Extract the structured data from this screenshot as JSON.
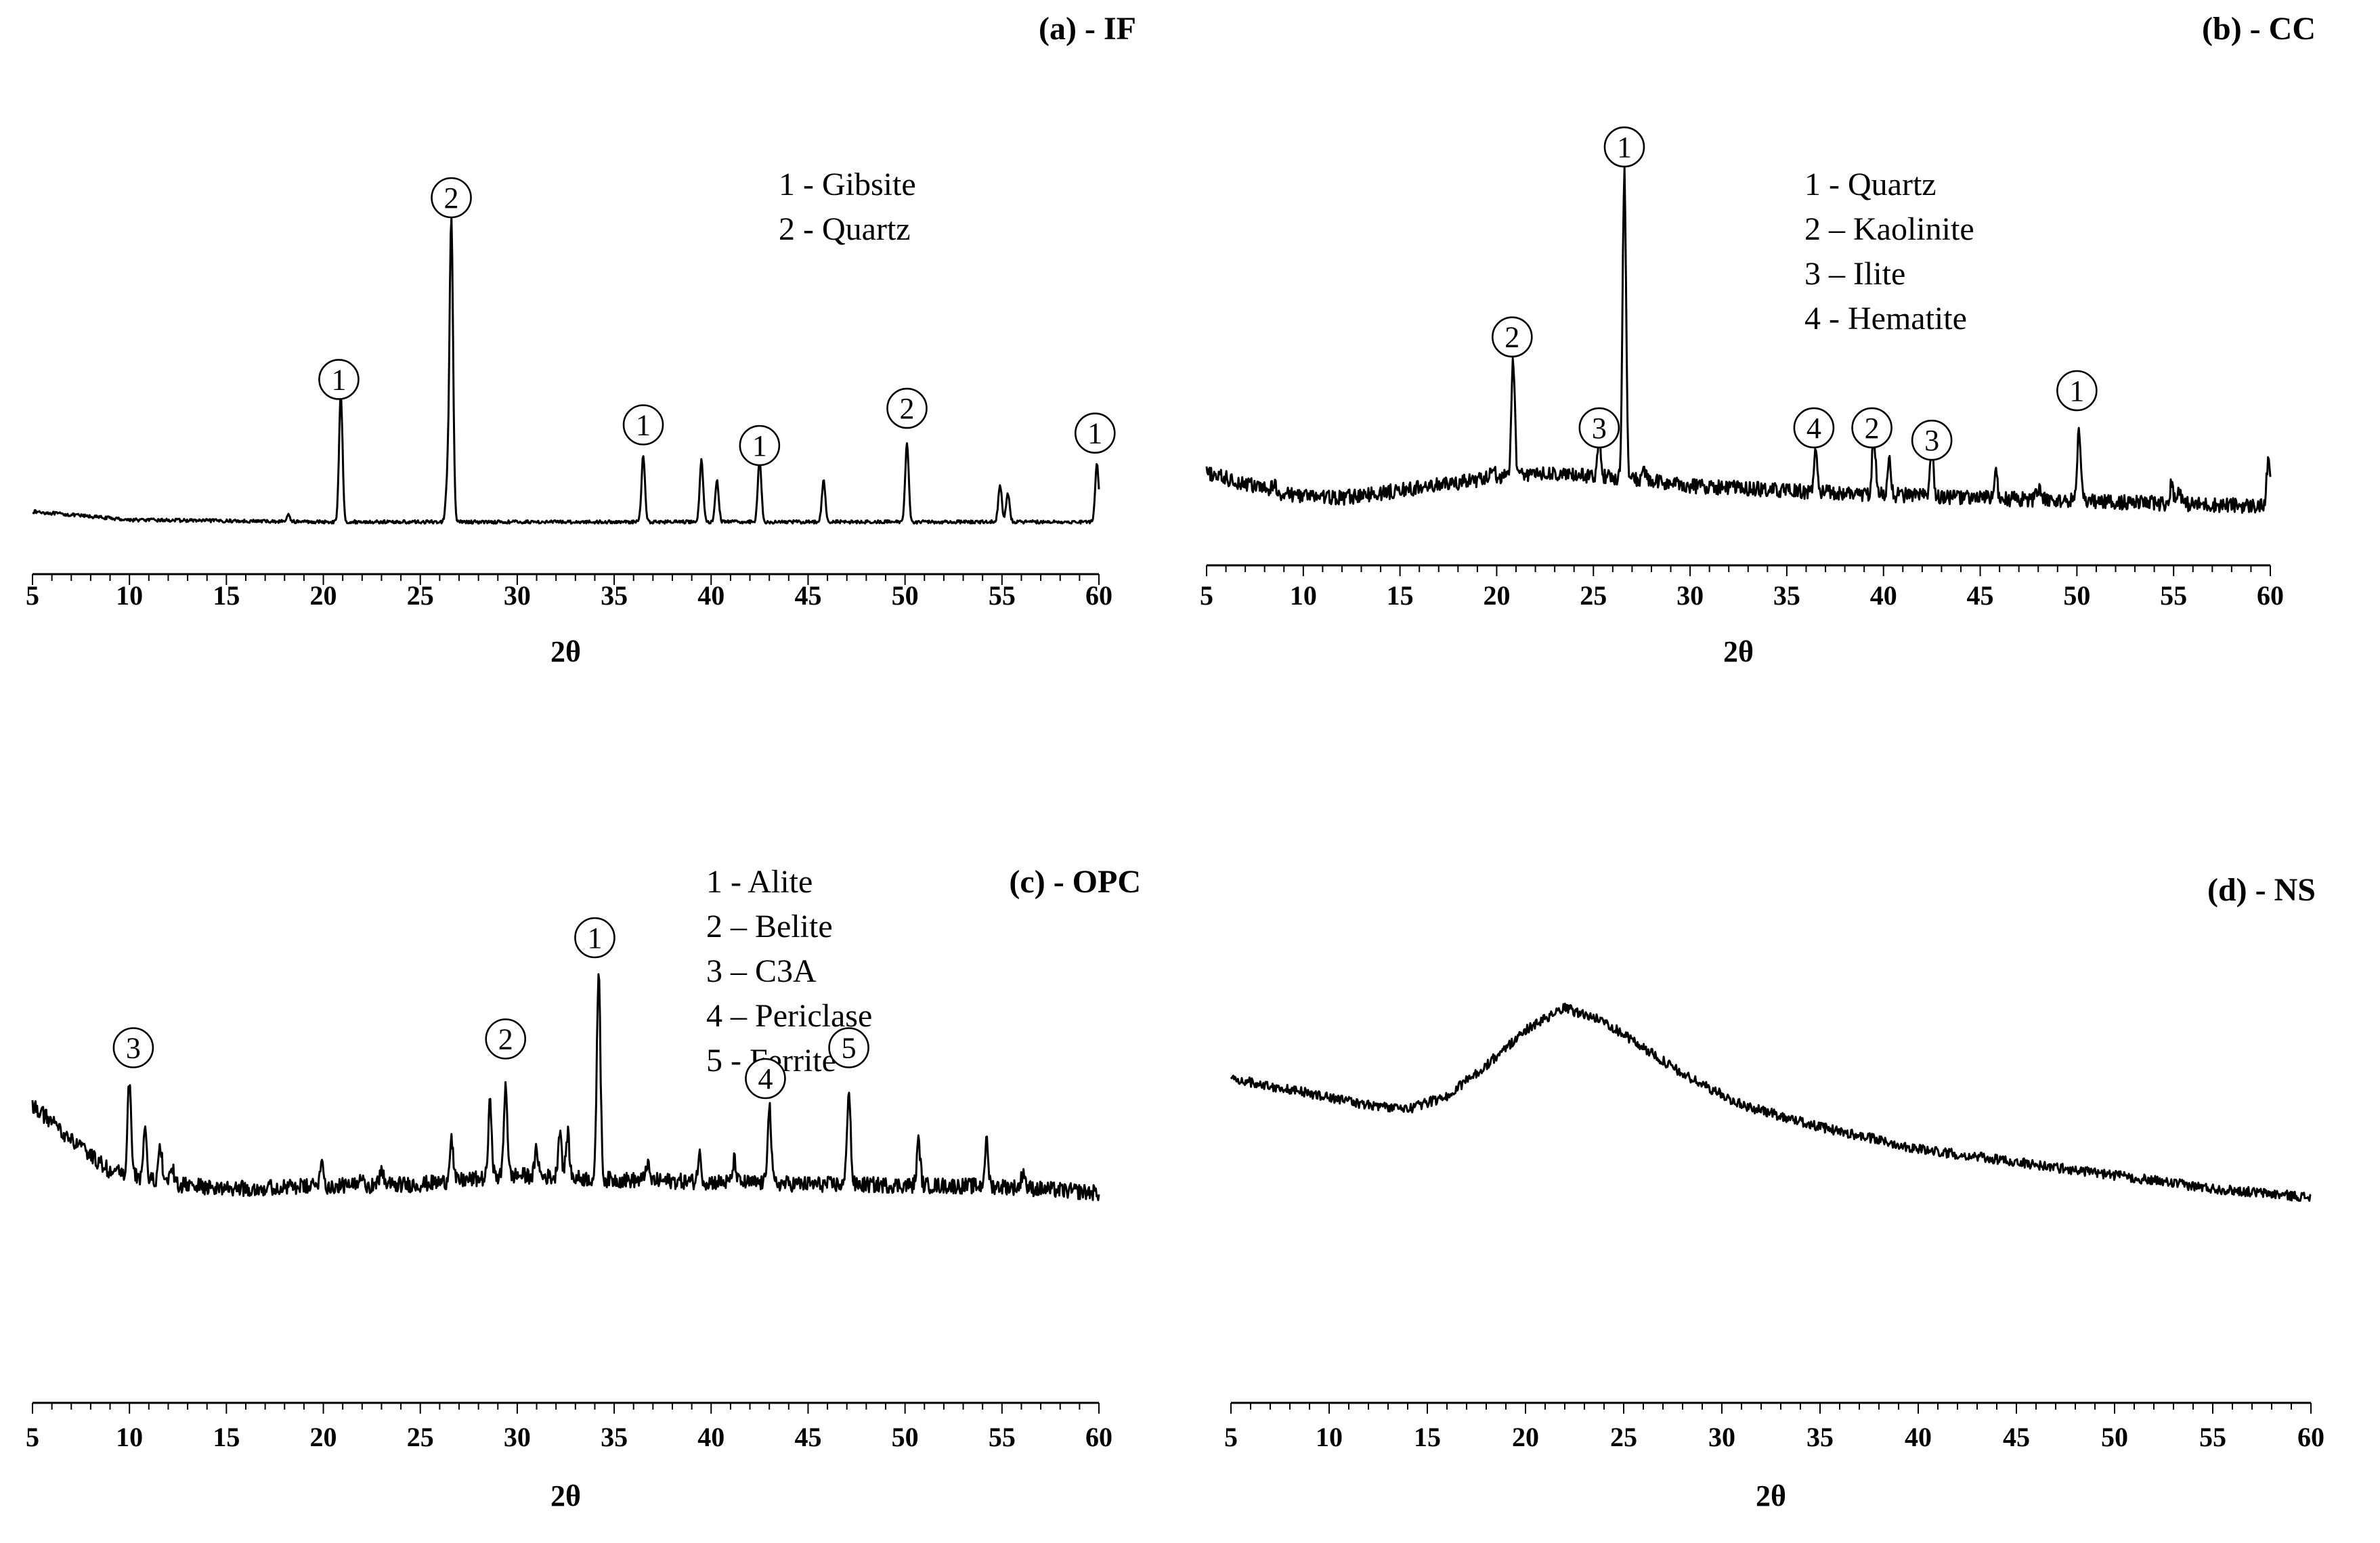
{
  "chart_data": [
    {
      "id": "IF",
      "type": "line",
      "title": "(a) - IF",
      "xlabel": "2θ",
      "ylabel": "",
      "xlim": [
        5,
        60
      ],
      "ylim": [
        0,
        100
      ],
      "xticks": [
        5,
        10,
        15,
        20,
        25,
        30,
        35,
        40,
        45,
        50,
        55,
        60
      ],
      "baseline": [
        [
          5,
          4
        ],
        [
          10,
          2
        ],
        [
          20,
          1.5
        ],
        [
          30,
          1.5
        ],
        [
          40,
          1.5
        ],
        [
          50,
          1.5
        ],
        [
          60,
          1.5
        ]
      ],
      "noise": 0.4,
      "peaks": [
        [
          18.2,
          1.5
        ],
        [
          20.9,
          31
        ],
        [
          26.6,
          73
        ],
        [
          26.4,
          9
        ],
        [
          36.5,
          16
        ],
        [
          39.5,
          15
        ],
        [
          40.3,
          10
        ],
        [
          42.5,
          15
        ],
        [
          45.8,
          10
        ],
        [
          50.1,
          19
        ],
        [
          54.9,
          9
        ],
        [
          55.3,
          7
        ],
        [
          59.9,
          14
        ]
      ],
      "legend": [
        "1 - Gibsite",
        "2 - Quartz"
      ],
      "markers": [
        {
          "label": "1",
          "x": 20.8,
          "y": 36
        },
        {
          "label": "2",
          "x": 26.6,
          "y": 80
        },
        {
          "label": "1",
          "x": 36.5,
          "y": 25
        },
        {
          "label": "1",
          "x": 42.5,
          "y": 20
        },
        {
          "label": "2",
          "x": 50.1,
          "y": 29
        },
        {
          "label": "1",
          "x": 59.8,
          "y": 23
        }
      ]
    },
    {
      "id": "CC",
      "type": "line",
      "title": "(b) - CC",
      "xlabel": "2θ",
      "ylabel": "",
      "xlim": [
        5,
        60
      ],
      "ylim": [
        0,
        100
      ],
      "xticks": [
        5,
        10,
        15,
        20,
        25,
        30,
        35,
        40,
        45,
        50,
        55,
        60
      ],
      "baseline": [
        [
          5,
          10
        ],
        [
          9,
          5
        ],
        [
          12,
          4
        ],
        [
          16,
          6.5
        ],
        [
          20,
          9
        ],
        [
          22,
          10
        ],
        [
          26,
          9
        ],
        [
          30,
          7
        ],
        [
          36,
          5.5
        ],
        [
          45,
          4
        ],
        [
          52,
          3
        ],
        [
          60,
          2
        ]
      ],
      "noise": 1.8,
      "peaks": [
        [
          8.5,
          2
        ],
        [
          19.8,
          2.5
        ],
        [
          20.85,
          28
        ],
        [
          25.3,
          10
        ],
        [
          26.6,
          74
        ],
        [
          27.6,
          3
        ],
        [
          36.5,
          10
        ],
        [
          39.5,
          14
        ],
        [
          40.3,
          8
        ],
        [
          42.5,
          11
        ],
        [
          45.8,
          6
        ],
        [
          48,
          3
        ],
        [
          50.1,
          17
        ],
        [
          54.9,
          5
        ],
        [
          55.3,
          4
        ],
        [
          59.9,
          11
        ]
      ],
      "legend": [
        "1 - Quartz",
        "2 – Kaolinite",
        "3 – Ilite",
        "4 - Hematite"
      ],
      "markers": [
        {
          "label": "1",
          "x": 26.6,
          "y": 89
        },
        {
          "label": "2",
          "x": 20.8,
          "y": 43
        },
        {
          "label": "3",
          "x": 25.3,
          "y": 21
        },
        {
          "label": "4",
          "x": 36.4,
          "y": 21
        },
        {
          "label": "2",
          "x": 39.4,
          "y": 21
        },
        {
          "label": "3",
          "x": 42.5,
          "y": 18
        },
        {
          "label": "1",
          "x": 50.0,
          "y": 30
        }
      ]
    },
    {
      "id": "OPC",
      "type": "line",
      "title": "(c) - OPC",
      "xlabel": "2θ",
      "ylabel": "",
      "xlim": [
        5,
        60
      ],
      "ylim": [
        0,
        100
      ],
      "xticks": [
        5,
        10,
        15,
        20,
        25,
        30,
        35,
        40,
        45,
        50,
        55,
        60
      ],
      "baseline": [
        [
          5,
          42
        ],
        [
          7,
          34
        ],
        [
          9,
          27
        ],
        [
          12,
          24
        ],
        [
          15,
          23
        ],
        [
          25,
          24
        ],
        [
          30,
          26
        ],
        [
          35,
          25
        ],
        [
          45,
          24
        ],
        [
          55,
          23.5
        ],
        [
          60,
          22
        ]
      ],
      "noise": 1.8,
      "peaks": [
        [
          10,
          22
        ],
        [
          10.8,
          11
        ],
        [
          11.6,
          8
        ],
        [
          12.2,
          4
        ],
        [
          19.9,
          6
        ],
        [
          22,
          3
        ],
        [
          23,
          4
        ],
        [
          26.6,
          10
        ],
        [
          28.6,
          17
        ],
        [
          29.4,
          21
        ],
        [
          31,
          6
        ],
        [
          32.2,
          11
        ],
        [
          32.6,
          10
        ],
        [
          34.2,
          48
        ],
        [
          36.7,
          4
        ],
        [
          39.4,
          6
        ],
        [
          41.2,
          5
        ],
        [
          43,
          18
        ],
        [
          47.1,
          22
        ],
        [
          50.7,
          10
        ],
        [
          54.2,
          10
        ],
        [
          56.1,
          4
        ]
      ],
      "legend": [
        "1 - Alite",
        "2 – Belite",
        "3 – C3A",
        "4 – Periclase",
        "5 - Ferrite"
      ],
      "markers": [
        {
          "label": "3",
          "x": 10.2,
          "y": 55
        },
        {
          "label": "2",
          "x": 29.4,
          "y": 57
        },
        {
          "label": "1",
          "x": 34.0,
          "y": 80
        },
        {
          "label": "4",
          "x": 42.8,
          "y": 48
        },
        {
          "label": "5",
          "x": 47.1,
          "y": 55
        }
      ]
    },
    {
      "id": "NS",
      "type": "line",
      "title": "(d) - NS",
      "xlabel": "2θ",
      "ylabel": "",
      "xlim": [
        5,
        60
      ],
      "ylim": [
        0,
        100
      ],
      "xticks": [
        5,
        10,
        15,
        20,
        25,
        30,
        35,
        40,
        45,
        50,
        55,
        60
      ],
      "baseline": [
        [
          5,
          48
        ],
        [
          8,
          45.5
        ],
        [
          12,
          42
        ],
        [
          14,
          41
        ],
        [
          16,
          44
        ],
        [
          18,
          51
        ],
        [
          20,
          59
        ],
        [
          22,
          64
        ],
        [
          24,
          61
        ],
        [
          26,
          55
        ],
        [
          28,
          49
        ],
        [
          31,
          42
        ],
        [
          35,
          37
        ],
        [
          40,
          32
        ],
        [
          45,
          29
        ],
        [
          50,
          26
        ],
        [
          55,
          23
        ],
        [
          60,
          21
        ]
      ],
      "noise": 1.1,
      "peaks": [],
      "legend": [],
      "markers": []
    }
  ]
}
